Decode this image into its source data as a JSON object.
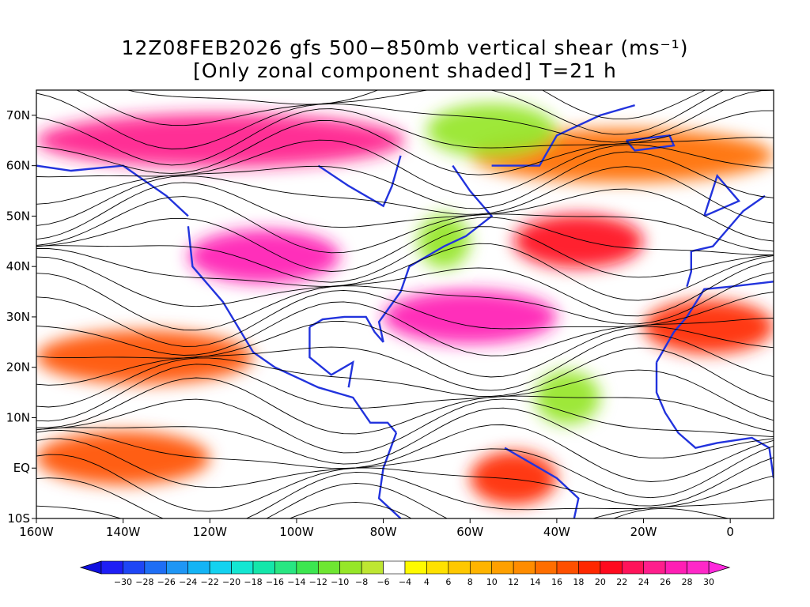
{
  "title_line1": "12Z08FEB2026 gfs 500−850mb vertical shear (ms⁻¹)",
  "title_line2": "[Only zonal component shaded] T=21 h",
  "colors": {
    "background": "#ffffff",
    "coastline": "#2233dd",
    "streamline": "#000000"
  },
  "chart_data": {
    "type": "heatmap",
    "x_ticks": [
      "160W",
      "140W",
      "120W",
      "100W",
      "80W",
      "60W",
      "40W",
      "20W",
      "0"
    ],
    "x_values": [
      -160,
      -140,
      -120,
      -100,
      -80,
      -60,
      -40,
      -20,
      0
    ],
    "y_ticks": [
      "70N",
      "60N",
      "50N",
      "40N",
      "30N",
      "20N",
      "10N",
      "EQ",
      "10S"
    ],
    "y_values": [
      70,
      60,
      50,
      40,
      30,
      20,
      10,
      0,
      -10
    ],
    "xlim": [
      -160,
      10
    ],
    "ylim": [
      -10,
      75
    ],
    "colorbar": {
      "labels": [
        "−30",
        "−28",
        "−26",
        "−24",
        "−22",
        "−20",
        "−18",
        "−16",
        "−14",
        "−12",
        "−10",
        "−8",
        "−6",
        "−4",
        "4",
        "6",
        "8",
        "10",
        "12",
        "14",
        "16",
        "18",
        "20",
        "22",
        "24",
        "26",
        "28",
        "30"
      ],
      "colors": [
        "#1e1ef5",
        "#1e46f5",
        "#1e6ef5",
        "#1e96f5",
        "#14b4f5",
        "#14d2f0",
        "#14e6d2",
        "#14e6aa",
        "#28e682",
        "#3ce650",
        "#6ee632",
        "#96e628",
        "#bee632",
        "#ffffff",
        "#fffa00",
        "#ffe100",
        "#ffc800",
        "#ffb400",
        "#ffa000",
        "#ff8c00",
        "#ff6e00",
        "#ff5000",
        "#ff2800",
        "#ff0a1e",
        "#ff145a",
        "#ff1e8c",
        "#ff1eb4",
        "#ff28c8"
      ],
      "under_color": "#1010e0",
      "over_color": "#ff28dc"
    },
    "shading_bands": [
      {
        "lat": 65,
        "lon_from": -160,
        "lon_to": -75,
        "value": 26
      },
      {
        "lat": 42,
        "lon_from": -125,
        "lon_to": -90,
        "value": 28
      },
      {
        "lat": 30,
        "lon_from": -80,
        "lon_to": -40,
        "value": 28
      },
      {
        "lat": 45,
        "lon_from": -50,
        "lon_to": -20,
        "value": 22
      },
      {
        "lat": 62,
        "lon_from": -60,
        "lon_to": 10,
        "value": 16
      },
      {
        "lat": 28,
        "lon_from": -20,
        "lon_to": 10,
        "value": 20
      },
      {
        "lat": 22,
        "lon_from": -160,
        "lon_to": -110,
        "value": 18
      },
      {
        "lat": 2,
        "lon_from": -160,
        "lon_to": -120,
        "value": 18
      },
      {
        "lat": -2,
        "lon_from": -60,
        "lon_to": -40,
        "value": 20
      },
      {
        "lat": 14,
        "lon_from": -45,
        "lon_to": -30,
        "value": -8
      },
      {
        "lat": 45,
        "lon_from": -72,
        "lon_to": -60,
        "value": -8
      },
      {
        "lat": 67,
        "lon_from": -70,
        "lon_to": -40,
        "value": -8
      }
    ]
  }
}
